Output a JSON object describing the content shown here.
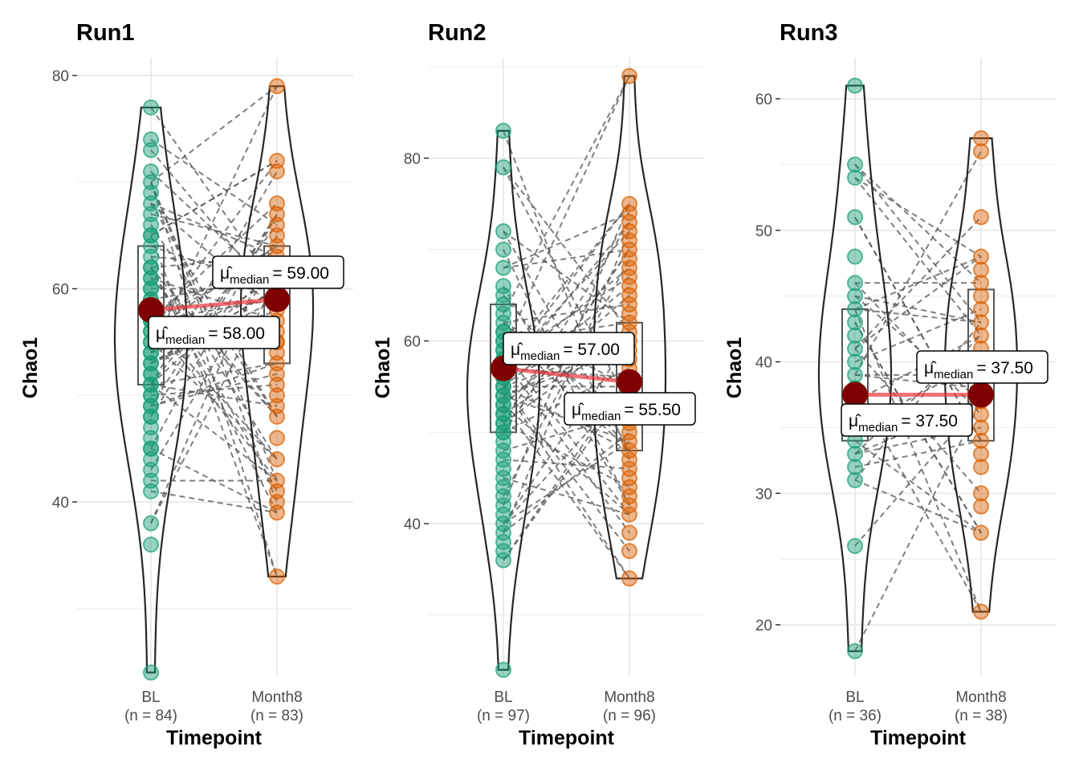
{
  "chart_data": [
    {
      "type": "violin-box-paired",
      "title": "Run1",
      "xlabel": "Timepoint",
      "ylabel": "Chao1",
      "ylim": [
        22,
        82
      ],
      "yticks": [
        40,
        60,
        80
      ],
      "grid": true,
      "categories": [
        "BL",
        "Month8"
      ],
      "group_n": [
        "(n = 84)",
        "(n = 83)"
      ],
      "colors": [
        "#1b9e77",
        "#d95f02"
      ],
      "medians": [
        58.0,
        59.0
      ],
      "median_labels": [
        "= 58.00",
        "= 59.00"
      ],
      "box_stats": [
        {
          "q1": 51,
          "median": 58,
          "q3": 64,
          "min": 24,
          "max": 77
        },
        {
          "q1": 53,
          "median": 59,
          "q3": 64,
          "min": 33,
          "max": 79
        }
      ],
      "points": [
        [
          77,
          74,
          73,
          71,
          70,
          69,
          68,
          67,
          66,
          65,
          65,
          64,
          63,
          62,
          62,
          61,
          61,
          60,
          60,
          59,
          59,
          58,
          58,
          57,
          57,
          57,
          56,
          56,
          55,
          55,
          54,
          54,
          53,
          53,
          52,
          52,
          51,
          51,
          50,
          50,
          49,
          49,
          48,
          48,
          47,
          46,
          45,
          45,
          44,
          43,
          42,
          41,
          38,
          36,
          24
        ],
        [
          79,
          72,
          71,
          68,
          67,
          66,
          65,
          64,
          63,
          62,
          62,
          61,
          60,
          60,
          59,
          58,
          57,
          56,
          55,
          55,
          54,
          53,
          52,
          51,
          50,
          49,
          48,
          46,
          44,
          42,
          41,
          40,
          39,
          33
        ]
      ]
    },
    {
      "type": "violin-box-paired",
      "title": "Run2",
      "xlabel": "Timepoint",
      "ylabel": "Chao1",
      "ylim": [
        22,
        91
      ],
      "yticks": [
        40,
        60,
        80
      ],
      "grid": true,
      "categories": [
        "BL",
        "Month8"
      ],
      "group_n": [
        "(n = 97)",
        "(n = 96)"
      ],
      "colors": [
        "#1b9e77",
        "#d95f02"
      ],
      "medians": [
        57.0,
        55.5
      ],
      "median_labels": [
        "= 57.00",
        "= 55.50"
      ],
      "box_stats": [
        {
          "q1": 50,
          "median": 57,
          "q3": 64,
          "min": 24,
          "max": 83
        },
        {
          "q1": 48,
          "median": 55.5,
          "q3": 62,
          "min": 34,
          "max": 89
        }
      ],
      "points": [
        [
          83,
          79,
          72,
          70,
          68,
          66,
          65,
          64,
          63,
          62,
          61,
          61,
          60,
          60,
          59,
          59,
          58,
          58,
          57,
          57,
          56,
          56,
          55,
          55,
          54,
          54,
          53,
          53,
          52,
          52,
          51,
          51,
          50,
          50,
          49,
          48,
          47,
          46,
          45,
          44,
          43,
          42,
          41,
          40,
          39,
          38,
          37,
          36,
          24
        ],
        [
          89,
          75,
          74,
          73,
          72,
          71,
          70,
          69,
          68,
          67,
          66,
          65,
          64,
          63,
          62,
          61,
          60,
          59,
          58,
          57,
          56,
          55,
          55,
          54,
          53,
          52,
          51,
          50,
          49,
          48,
          47,
          46,
          45,
          44,
          43,
          42,
          41,
          39,
          37,
          34
        ]
      ]
    },
    {
      "type": "violin-box-paired",
      "title": "Run3",
      "xlabel": "Timepoint",
      "ylabel": "Chao1",
      "ylim": [
        16,
        63
      ],
      "yticks": [
        20,
        30,
        40,
        50,
        60
      ],
      "grid": true,
      "categories": [
        "BL",
        "Month8"
      ],
      "group_n": [
        "(n = 36)",
        "(n = 38)"
      ],
      "colors": [
        "#1b9e77",
        "#d95f02"
      ],
      "medians": [
        37.5,
        37.5
      ],
      "median_labels": [
        "= 37.50",
        "= 37.50"
      ],
      "box_stats": [
        {
          "q1": 34,
          "median": 37.5,
          "q3": 44,
          "min": 18,
          "max": 61
        },
        {
          "q1": 34,
          "median": 37.5,
          "q3": 45.5,
          "min": 21,
          "max": 57
        }
      ],
      "points": [
        [
          61,
          55,
          54,
          51,
          48,
          46,
          45,
          44,
          43,
          42,
          41,
          40,
          39,
          38,
          37,
          36,
          35,
          34,
          33,
          32,
          31,
          26,
          18
        ],
        [
          57,
          56,
          51,
          48,
          47,
          46,
          45,
          44,
          43,
          42,
          41,
          40,
          39,
          38,
          37,
          36,
          35,
          34,
          33,
          32,
          30,
          29,
          27,
          21
        ]
      ]
    }
  ],
  "median_symbol": "μ̂",
  "median_subscript": "median"
}
